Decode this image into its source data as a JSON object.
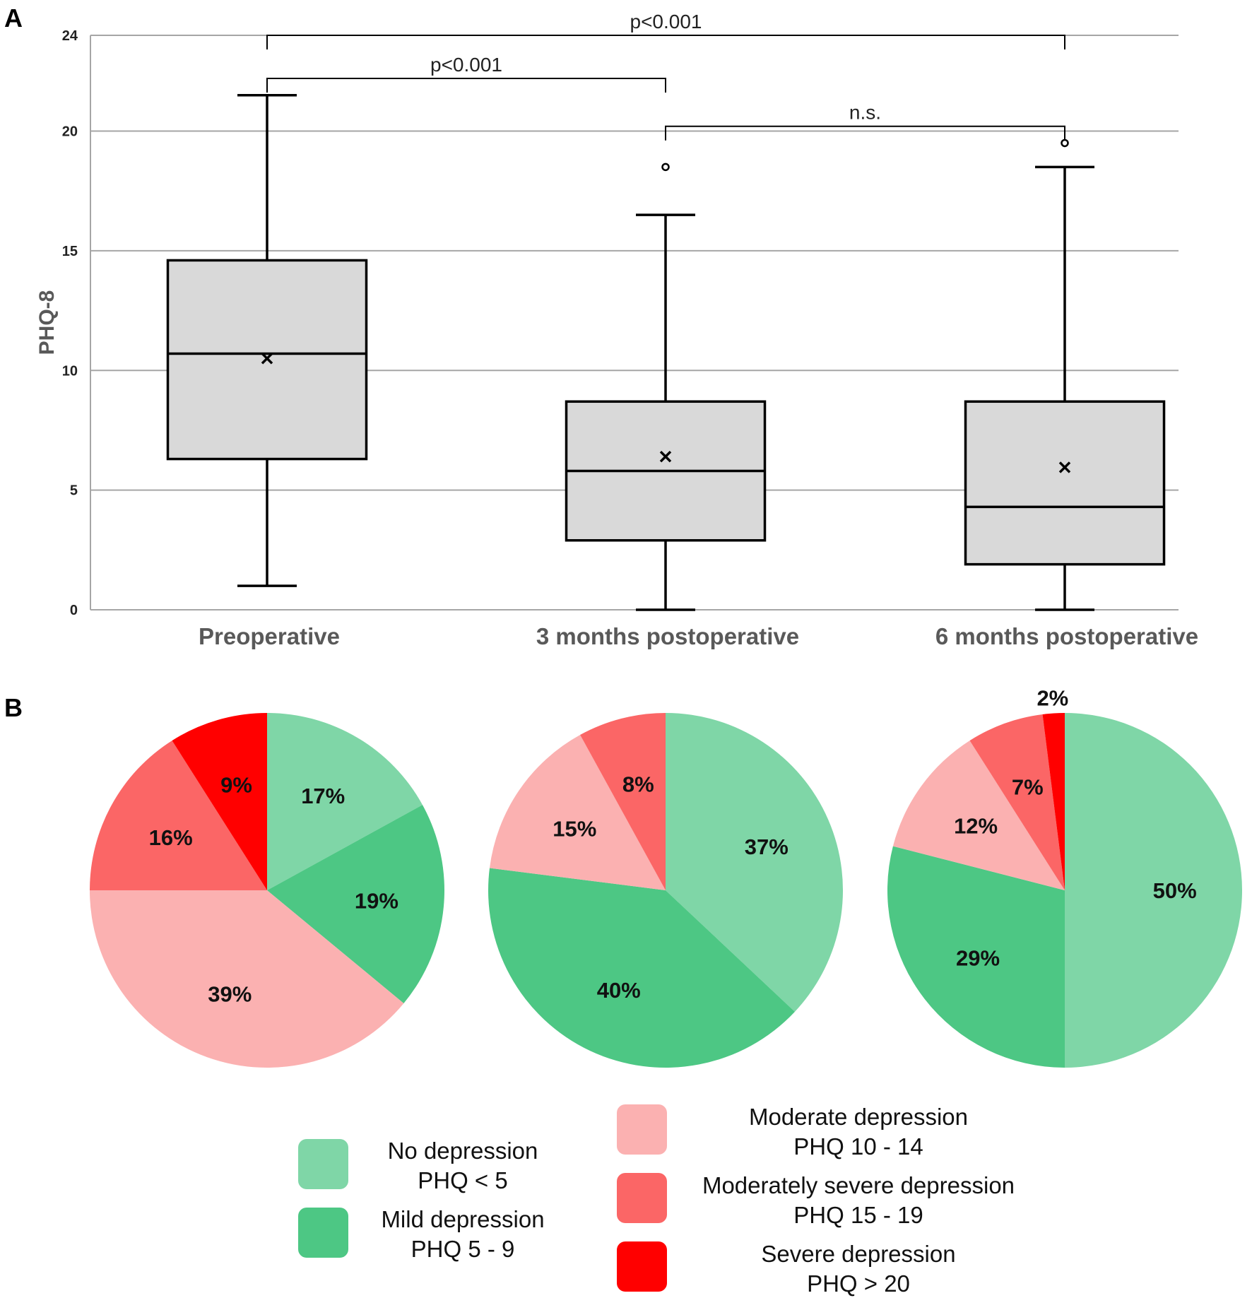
{
  "panels": {
    "a": "A",
    "b": "B"
  },
  "chart_data": [
    {
      "type": "box",
      "ylabel": "PHQ-8",
      "ylim": [
        0,
        24
      ],
      "yticks": [
        0,
        5,
        10,
        15,
        20,
        24
      ],
      "grid": true,
      "categories": [
        "Preoperative",
        "3 months postoperative",
        "6 months postoperative"
      ],
      "boxes": [
        {
          "min": 1,
          "q1": 6.3,
          "median": 10.7,
          "q3": 14.6,
          "max": 21.5,
          "mean": 10.5,
          "outliers": []
        },
        {
          "min": 0,
          "q1": 2.9,
          "median": 5.8,
          "q3": 8.7,
          "max": 16.5,
          "mean": 6.4,
          "outliers": [
            18.5
          ]
        },
        {
          "min": 0,
          "q1": 1.9,
          "median": 4.3,
          "q3": 8.7,
          "max": 18.5,
          "mean": 5.95,
          "outliers": [
            19.5
          ]
        }
      ],
      "significance": [
        {
          "from": 0,
          "to": 2,
          "label": "p<0.001",
          "y": 24
        },
        {
          "from": 0,
          "to": 1,
          "label": "p<0.001",
          "y": 22.2
        },
        {
          "from": 1,
          "to": 2,
          "label": "n.s.",
          "y": 20.2
        }
      ]
    },
    {
      "type": "pie",
      "series_labels": [
        "Preoperative",
        "3 months postoperative",
        "6 months postoperative"
      ],
      "categories": [
        "No depression",
        "Mild depression",
        "Moderate depression",
        "Moderately severe depression",
        "Severe depression"
      ],
      "pies": [
        {
          "values": [
            17,
            19,
            39,
            16,
            9
          ],
          "labels": [
            "17%",
            "19%",
            "39%",
            "16%",
            "9%"
          ]
        },
        {
          "values": [
            37,
            40,
            15,
            8,
            0
          ],
          "labels": [
            "37%",
            "40%",
            "15%",
            "8%",
            ""
          ]
        },
        {
          "values": [
            50,
            29,
            12,
            7,
            2
          ],
          "labels": [
            "50%",
            "29%",
            "12%",
            "7%",
            "2%"
          ]
        }
      ],
      "colors": [
        "#7fd6a7",
        "#4dc784",
        "#fbb1b1",
        "#fb6666",
        "#ff0000"
      ],
      "legend": [
        {
          "name": "No depression",
          "range": "PHQ < 5"
        },
        {
          "name": "Mild depression",
          "range": "PHQ 5 - 9"
        },
        {
          "name": "Moderate depression",
          "range": "PHQ 10 - 14"
        },
        {
          "name": "Moderately severe depression",
          "range": "PHQ 15 - 19"
        },
        {
          "name": "Severe depression",
          "range": "PHQ > 20"
        }
      ]
    }
  ]
}
